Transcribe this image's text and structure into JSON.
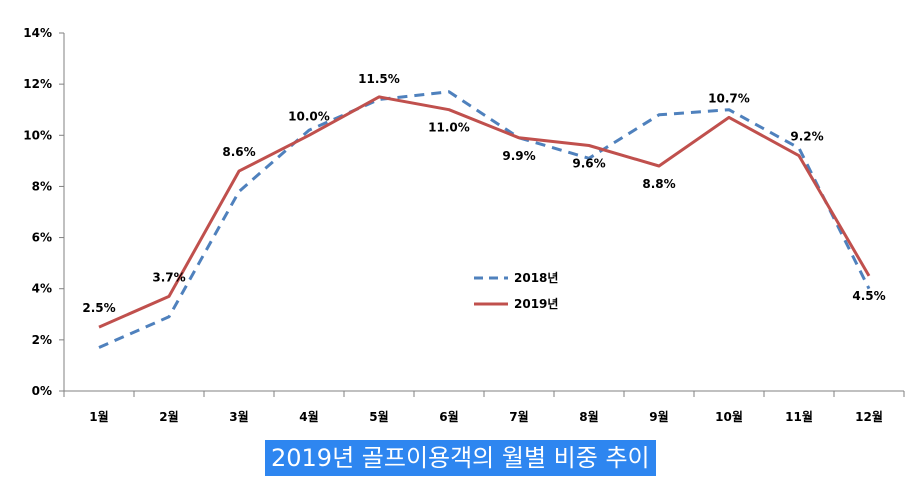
{
  "caption": "2019년 골프이용객의 월별 비중 추이",
  "chart_data": {
    "type": "line",
    "categories": [
      "1월",
      "2월",
      "3월",
      "4월",
      "5월",
      "6월",
      "7월",
      "8월",
      "9월",
      "10월",
      "11월",
      "12월"
    ],
    "series": [
      {
        "name": "2018년",
        "color": "#4f81bd",
        "style": "dashed",
        "values": [
          1.7,
          2.9,
          7.8,
          10.2,
          11.4,
          11.7,
          9.9,
          9.1,
          10.8,
          11.0,
          9.5,
          4.0
        ]
      },
      {
        "name": "2019년",
        "color": "#c0504d",
        "style": "solid",
        "values": [
          2.5,
          3.7,
          8.6,
          10.0,
          11.5,
          11.0,
          9.9,
          9.6,
          8.8,
          10.7,
          9.2,
          4.5
        ]
      }
    ],
    "data_labels": [
      "2.5%",
      "3.7%",
      "8.6%",
      "10.0%",
      "11.5%",
      "11.0%",
      "9.9%",
      "9.6%",
      "8.8%",
      "10.7%",
      "9.2%",
      "4.5%"
    ],
    "y_ticks": [
      "0%",
      "2%",
      "4%",
      "6%",
      "8%",
      "10%",
      "12%",
      "14%"
    ],
    "ylim": [
      0,
      14
    ],
    "grid": false,
    "legend_position": "center"
  }
}
